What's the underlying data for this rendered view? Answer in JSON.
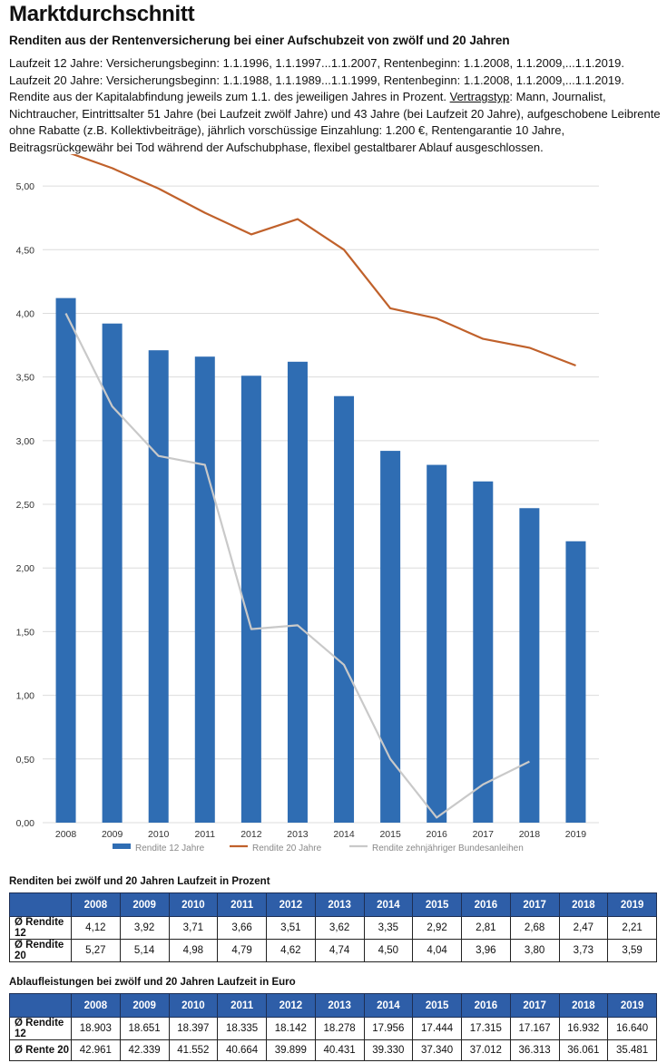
{
  "header": {
    "title": "Marktdurchschnitt",
    "subtitle": "Renditen aus der Rentenversicherung bei einer Aufschubzeit von zwölf und 20 Jahren",
    "desc_part1": "Laufzeit 12 Jahre: Versicherungsbeginn: 1.1.1996, 1.1.1997...1.1.2007, Rentenbeginn: 1.1.2008, 1.1.2009,...1.1.2019. Laufzeit 20 Jahre: Versicherungsbeginn: 1.1.1988, 1.1.1989...1.1.1999, Rentenbeginn: 1.1.2008, 1.1.2009,...1.1.2019. Rendite aus der Kapitalabfindung jeweils zum 1.1. des jeweiligen Jahres in Prozent. ",
    "desc_underlined": "Vertragstyp",
    "desc_part2": ": Mann, Journalist, Nichtraucher, Eintrittsalter 51 Jahre (bei Laufzeit zwölf Jahre) und 43 Jahre (bei Laufzeit 20 Jahre), aufgeschobene Leibrente ohne Rabatte (z.B. Kollektivbeiträge), jährlich vorschüssige Einzahlung: 1.200 €, Rentengarantie 10 Jahre, Beitragsrückgewähr bei Tod während der Aufschubphase, flexibel gestaltbarer Ablauf ausgeschlossen."
  },
  "chart_data": {
    "type": "bar",
    "categories": [
      "2008",
      "2009",
      "2010",
      "2011",
      "2012",
      "2013",
      "2014",
      "2015",
      "2016",
      "2017",
      "2018",
      "2019"
    ],
    "ylim": [
      0,
      5.25
    ],
    "yticks": [
      "0,00",
      "0,50",
      "1,00",
      "1,50",
      "2,00",
      "2,50",
      "3,00",
      "3,50",
      "4,00",
      "4,50",
      "5,00"
    ],
    "grid": true,
    "legend_position": "bottom",
    "series": [
      {
        "name": "Rendite 12 Jahre",
        "kind": "bar",
        "color": "#2f6db3",
        "values": [
          4.12,
          3.92,
          3.71,
          3.66,
          3.51,
          3.62,
          3.35,
          2.92,
          2.81,
          2.68,
          2.47,
          2.21
        ]
      },
      {
        "name": "Rendite 20 Jahre",
        "kind": "line",
        "color": "#c0612b",
        "values": [
          5.27,
          5.14,
          4.98,
          4.79,
          4.62,
          4.74,
          4.5,
          4.04,
          3.96,
          3.8,
          3.73,
          3.59
        ]
      },
      {
        "name": "Rendite zehnjähriger Bundesanleihen",
        "kind": "line",
        "color": "#c9c9c9",
        "values": [
          4.0,
          3.27,
          2.88,
          2.81,
          1.52,
          1.55,
          1.24,
          0.5,
          0.04,
          0.3,
          0.48,
          null
        ]
      }
    ]
  },
  "table1": {
    "title": "Renditen bei zwölf und 20 Jahren Laufzeit in Prozent",
    "header": [
      "",
      "2008",
      "2009",
      "2010",
      "2011",
      "2012",
      "2013",
      "2014",
      "2015",
      "2016",
      "2017",
      "2018",
      "2019"
    ],
    "rows": [
      [
        "Ø Rendite 12",
        "4,12",
        "3,92",
        "3,71",
        "3,66",
        "3,51",
        "3,62",
        "3,35",
        "2,92",
        "2,81",
        "2,68",
        "2,47",
        "2,21"
      ],
      [
        "Ø Rendite 20",
        "5,27",
        "5,14",
        "4,98",
        "4,79",
        "4,62",
        "4,74",
        "4,50",
        "4,04",
        "3,96",
        "3,80",
        "3,73",
        "3,59"
      ]
    ]
  },
  "table2": {
    "title": "Ablaufleistungen bei zwölf und 20 Jahren Laufzeit in Euro",
    "header": [
      "",
      "2008",
      "2009",
      "2010",
      "2011",
      "2012",
      "2013",
      "2014",
      "2015",
      "2016",
      "2017",
      "2018",
      "2019"
    ],
    "rows": [
      [
        "Ø Rendite 12",
        "18.903",
        "18.651",
        "18.397",
        "18.335",
        "18.142",
        "18.278",
        "17.956",
        "17.444",
        "17.315",
        "17.167",
        "16.932",
        "16.640"
      ],
      [
        "Ø Rente 20",
        "42.961",
        "42.339",
        "41.552",
        "40.664",
        "39.899",
        "40.431",
        "39.330",
        "37.340",
        "37.012",
        "36.313",
        "36.061",
        "35.481"
      ]
    ]
  }
}
